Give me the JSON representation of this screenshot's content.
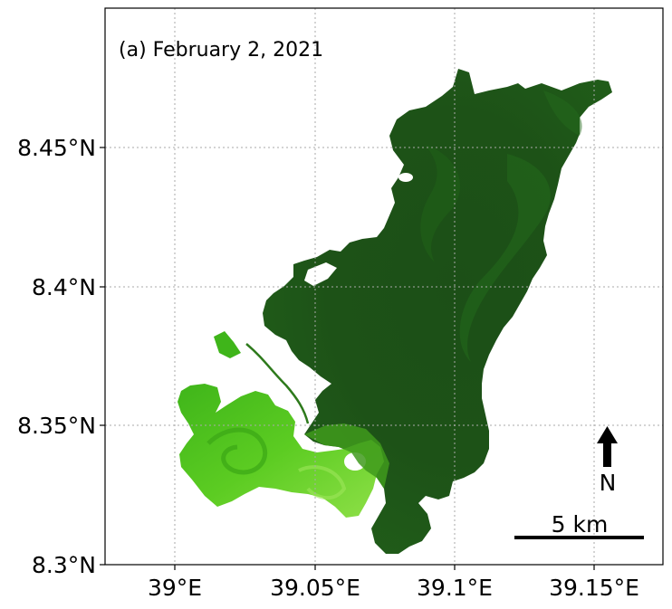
{
  "panel_title": "(a) February 2, 2021",
  "x_ticks": [
    "39°E",
    "39.05°E",
    "39.1°E",
    "39.15°E"
  ],
  "y_ticks": [
    "8.45°N",
    "8.4°N",
    "8.35°N",
    "8.3°N"
  ],
  "north_label": "N",
  "scale_label": "5 km",
  "colors": {
    "deep_water": "#1b4a16",
    "mid_water": "#22661a",
    "bloom": "#4cc21c",
    "bloom_light": "#7fdc38",
    "grid": "#aaaaaa"
  }
}
